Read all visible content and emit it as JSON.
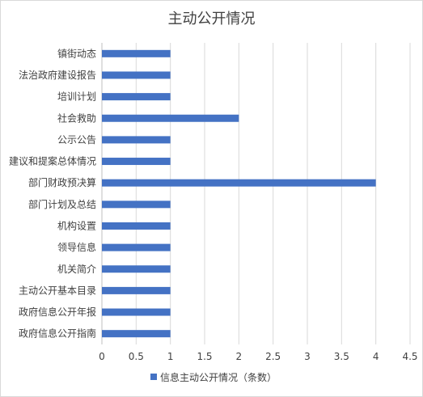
{
  "chart_data": {
    "type": "bar",
    "orientation": "horizontal",
    "title": "主动公开情况",
    "categories": [
      "镇街动态",
      "法治政府建设报告",
      "培训计划",
      "社会救助",
      "公示公告",
      "建议和提案总体情况",
      "部门财政预决算",
      "部门计划及总结",
      "机构设置",
      "领导信息",
      "机关简介",
      "主动公开基本目录",
      "政府信息公开年报",
      "政府信息公开指南"
    ],
    "series": [
      {
        "name": "信息主动公开情况（条数）",
        "values": [
          1,
          1,
          1,
          2,
          1,
          1,
          4,
          1,
          1,
          1,
          1,
          1,
          1,
          1
        ]
      }
    ],
    "xlim": [
      0,
      4.5
    ],
    "xticks": [
      "0",
      "0.5",
      "1",
      "1.5",
      "2",
      "2.5",
      "3",
      "3.5",
      "4",
      "4.5"
    ],
    "grid": "vertical",
    "legend_position": "bottom",
    "colors": {
      "bar": "#4472C4",
      "grid": "#d9d9d9",
      "text": "#404040"
    }
  }
}
